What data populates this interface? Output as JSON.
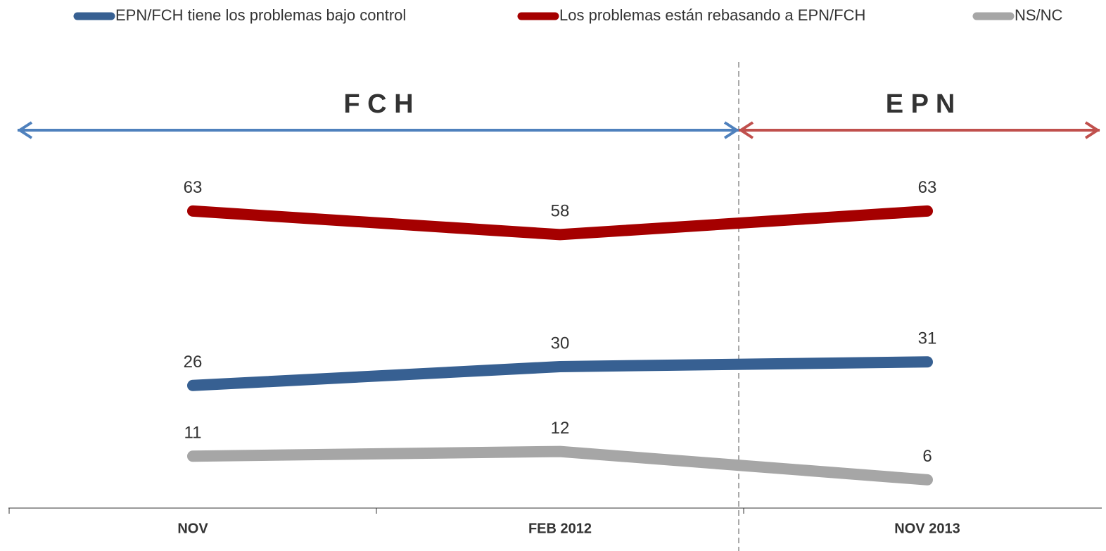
{
  "chart_data": {
    "type": "line",
    "categories": [
      "NOV",
      "FEB 2012",
      "NOV 2013"
    ],
    "series": [
      {
        "name": "EPN/FCH tiene los problemas bajo control",
        "color": "#376092",
        "values": [
          26,
          30,
          31
        ]
      },
      {
        "name": "Los problemas están rebasando a EPN/FCH",
        "color": "#a50000",
        "values": [
          63,
          58,
          63
        ]
      },
      {
        "name": "NS/NC",
        "color": "#a6a6a6",
        "values": [
          11,
          12,
          6
        ]
      }
    ],
    "ylim": [
      0,
      100
    ],
    "annotations": [
      {
        "text": "F C H",
        "color": "#4f81bd"
      },
      {
        "text": "E P N",
        "color": "#c0504d"
      }
    ]
  }
}
